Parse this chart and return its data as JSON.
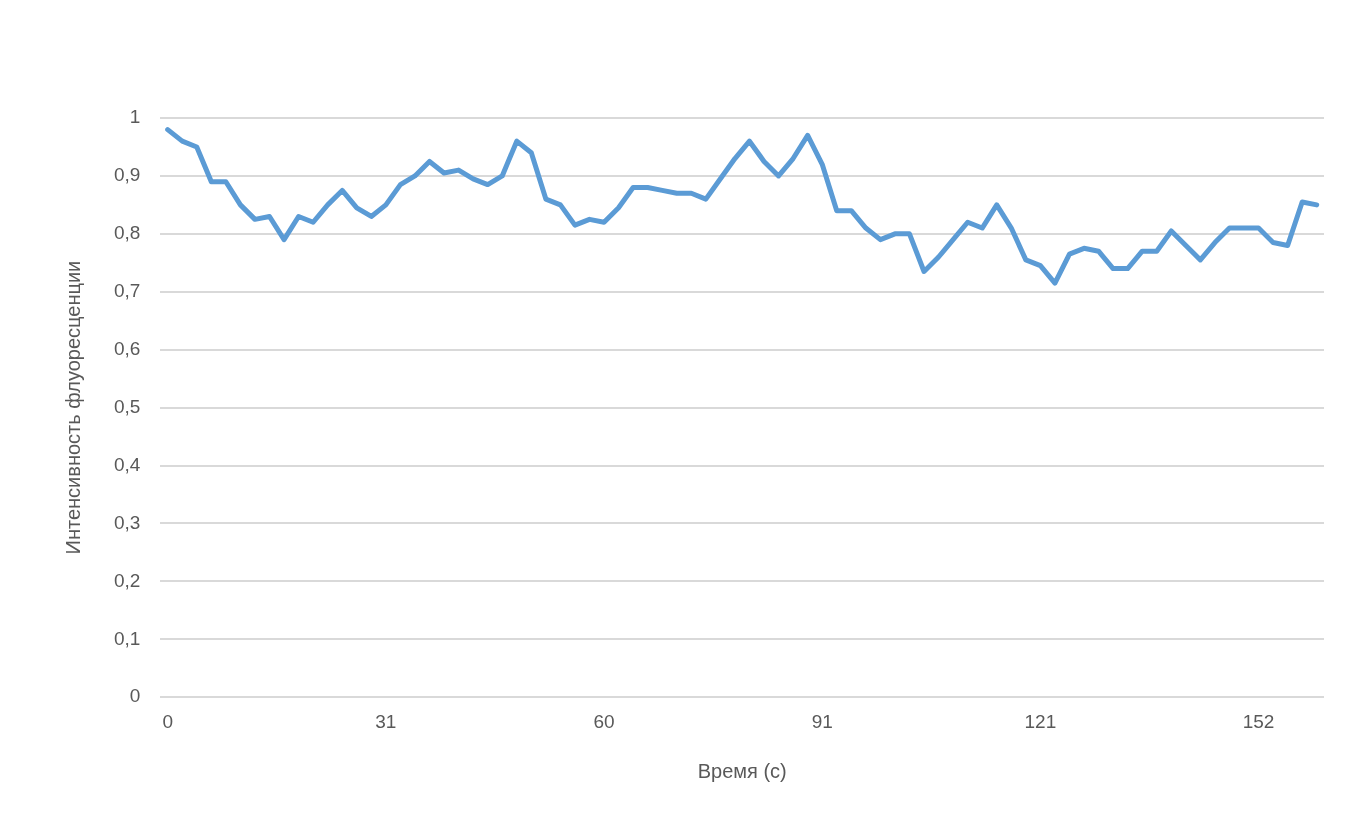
{
  "chart_data": {
    "type": "line",
    "xlabel": "Время (с)",
    "ylabel": "Интенсивность флуоресценции",
    "categories": [
      "0",
      null,
      null,
      null,
      null,
      null,
      null,
      null,
      null,
      null,
      null,
      null,
      null,
      null,
      null,
      "31",
      null,
      null,
      null,
      null,
      null,
      null,
      null,
      null,
      null,
      null,
      null,
      null,
      null,
      null,
      "60",
      null,
      null,
      null,
      null,
      null,
      null,
      null,
      null,
      null,
      null,
      null,
      null,
      null,
      null,
      "91",
      null,
      null,
      null,
      null,
      null,
      null,
      null,
      null,
      null,
      null,
      null,
      null,
      null,
      null,
      "121",
      null,
      null,
      null,
      null,
      null,
      null,
      null,
      null,
      null,
      null,
      null,
      null,
      null,
      null,
      "152",
      null,
      null,
      null,
      null
    ],
    "series": [
      {
        "color": "#5b9bd5",
        "values": [
          0.98,
          0.96,
          0.95,
          0.89,
          0.89,
          0.85,
          0.825,
          0.83,
          0.79,
          0.83,
          0.82,
          0.85,
          0.875,
          0.845,
          0.83,
          0.85,
          0.885,
          0.9,
          0.925,
          0.905,
          0.91,
          0.895,
          0.885,
          0.9,
          0.96,
          0.94,
          0.86,
          0.85,
          0.815,
          0.825,
          0.82,
          0.845,
          0.88,
          0.88,
          0.875,
          0.87,
          0.87,
          0.86,
          0.895,
          0.93,
          0.96,
          0.925,
          0.9,
          0.93,
          0.97,
          0.92,
          0.84,
          0.84,
          0.81,
          0.79,
          0.8,
          0.8,
          0.735,
          0.76,
          0.79,
          0.82,
          0.81,
          0.85,
          0.81,
          0.755,
          0.745,
          0.715,
          0.765,
          0.775,
          0.77,
          0.74,
          0.74,
          0.77,
          0.77,
          0.805,
          0.78,
          0.755,
          0.785,
          0.81,
          0.81,
          0.81,
          0.785,
          0.78,
          0.855,
          0.85
        ]
      }
    ],
    "ylim": [
      0,
      1
    ],
    "yticks": [
      0,
      {
        "value": 0.1,
        "label": "0,1"
      },
      {
        "value": 0.2,
        "label": "0,2"
      },
      {
        "value": 0.3,
        "label": "0,3"
      },
      {
        "value": 0.4,
        "label": "0,4"
      },
      {
        "value": 0.5,
        "label": "0,5"
      },
      {
        "value": 0.6,
        "label": "0,6"
      },
      {
        "value": 0.7,
        "label": "0,7"
      },
      {
        "value": 0.8,
        "label": "0,8"
      },
      {
        "value": 0.9,
        "label": "0,9"
      },
      1
    ],
    "grid": "y",
    "legend": false,
    "marker": "none",
    "line_style": "solid"
  }
}
